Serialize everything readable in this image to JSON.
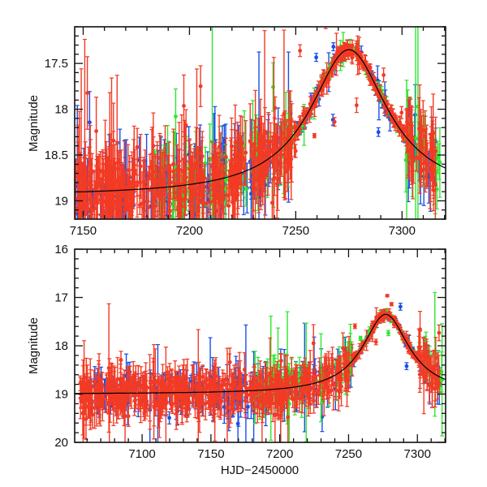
{
  "chart_data": [
    {
      "type": "scatter",
      "panel": "top",
      "title": "",
      "xlabel": "",
      "ylabel": "Magnitude",
      "xlim": [
        7146,
        7320.5
      ],
      "ylim": [
        19.2,
        17.1
      ],
      "y_inverted": true,
      "xticks": [
        7150,
        7200,
        7250,
        7300
      ],
      "xtick_labels": [
        "7150",
        "7200",
        "7250",
        "7300"
      ],
      "x_minor_step": 10,
      "yticks": [
        17.5,
        18,
        18.5,
        19
      ],
      "ytick_labels": [
        "17.5",
        "18",
        "18.5",
        "19"
      ],
      "y_minor_step": 0.1,
      "grid": false,
      "legend": "none",
      "series": [
        {
          "name": "blue",
          "color": "#1a4fe6",
          "x_range": [
            7146,
            7316
          ],
          "count": 220,
          "seed": 11
        },
        {
          "name": "green",
          "color": "#2ee62e",
          "x_range": [
            7182,
            7318
          ],
          "count": 160,
          "seed": 23
        },
        {
          "name": "red",
          "color": "#f23a24",
          "x_range": [
            7146,
            7316
          ],
          "count": 650,
          "seed": 37
        }
      ],
      "model_curve": {
        "color": "#000000",
        "baseline_mag": 18.95,
        "peak_mag": 17.35,
        "peak_hjd": 7275,
        "width_days": 28
      }
    },
    {
      "type": "scatter",
      "panel": "bottom",
      "title": "",
      "xlabel": "HJD−2450000",
      "ylabel": "Magnitude",
      "xlim": [
        7051,
        7320.5
      ],
      "ylim": [
        20,
        16
      ],
      "y_inverted": true,
      "xticks": [
        7100,
        7150,
        7200,
        7250,
        7300
      ],
      "xtick_labels": [
        "7100",
        "7150",
        "7200",
        "7250",
        "7300"
      ],
      "x_minor_step": 10,
      "yticks": [
        16,
        17,
        18,
        19,
        20
      ],
      "ytick_labels": [
        "16",
        "17",
        "18",
        "19",
        "20"
      ],
      "y_minor_step": 0.2,
      "grid": false,
      "legend": "none",
      "series": [
        {
          "name": "blue",
          "color": "#1a4fe6",
          "x_range": [
            7060,
            7316
          ],
          "count": 240,
          "seed": 51
        },
        {
          "name": "green",
          "color": "#2ee62e",
          "x_range": [
            7180,
            7318
          ],
          "count": 150,
          "seed": 63
        },
        {
          "name": "red",
          "color": "#f23a24",
          "x_range": [
            7055,
            7316
          ],
          "count": 700,
          "seed": 77
        }
      ],
      "model_curve": {
        "color": "#000000",
        "baseline_mag": 19.0,
        "peak_mag": 17.35,
        "peak_hjd": 7277,
        "width_days": 26
      }
    }
  ]
}
